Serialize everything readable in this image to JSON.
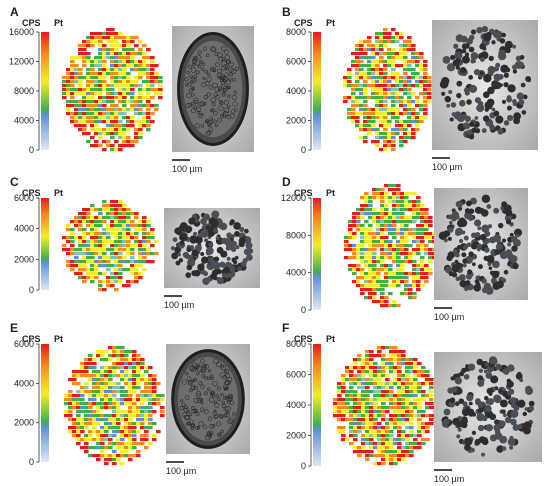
{
  "unit_cps": "CPS",
  "unit_pt": "Pt",
  "scale_label": "100 µm",
  "colors": {
    "scale_top": "#e31d1d",
    "scale_orange": "#f68a1f",
    "scale_yellow": "#f4ec2d",
    "scale_green": "#3cb04a",
    "scale_blue_dark": "#5d8fd6",
    "scale_blue_light": "#dfe7f6",
    "micrograph_light": "#cfcfcf",
    "micrograph_dark": "#2d2d2d"
  },
  "panels": [
    {
      "id": "A",
      "ticks": [
        "16000",
        "12000",
        "8000",
        "4000",
        "0"
      ],
      "cluster": "ring-lattice"
    },
    {
      "id": "B",
      "ticks": [
        "8000",
        "6000",
        "4000",
        "2000",
        "0"
      ],
      "cluster": "dispersed-clumps"
    },
    {
      "id": "C",
      "ticks": [
        "6000",
        "4000",
        "2000",
        "0"
      ],
      "cluster": "compact-clumps"
    },
    {
      "id": "D",
      "ticks": [
        "12000",
        "8000",
        "4000",
        "0"
      ],
      "cluster": "dense-split-field"
    },
    {
      "id": "E",
      "ticks": [
        "6000",
        "4000",
        "2000",
        "0"
      ],
      "cluster": "oval-lattice"
    },
    {
      "id": "F",
      "ticks": [
        "8000",
        "6000",
        "4000",
        "2000",
        "0"
      ],
      "cluster": "fragmented-clumps"
    }
  ]
}
